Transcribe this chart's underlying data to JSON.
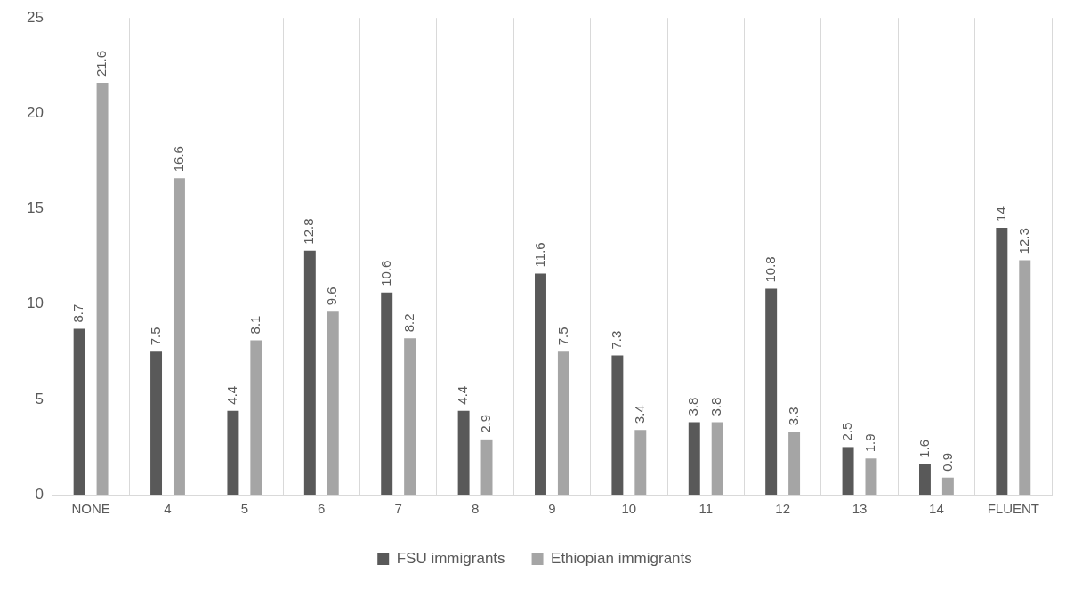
{
  "chart_data": {
    "type": "bar",
    "categories": [
      "NONE",
      "4",
      "5",
      "6",
      "7",
      "8",
      "9",
      "10",
      "11",
      "12",
      "13",
      "14",
      "FLUENT"
    ],
    "series": [
      {
        "name": "FSU immigrants",
        "color": "#595959",
        "values": [
          8.7,
          7.5,
          4.4,
          12.8,
          10.6,
          4.4,
          11.6,
          7.3,
          3.8,
          10.8,
          2.5,
          1.6,
          14
        ]
      },
      {
        "name": "Ethiopian immigrants",
        "color": "#a5a5a5",
        "values": [
          21.6,
          16.6,
          8.1,
          9.6,
          8.2,
          2.9,
          7.5,
          3.4,
          3.8,
          3.3,
          1.9,
          0.9,
          12.3
        ]
      }
    ],
    "ylim": [
      0,
      25
    ],
    "yticks": [
      0,
      5,
      10,
      15,
      20,
      25
    ],
    "grid": "x",
    "legend": "bottom",
    "data_labels": true
  }
}
